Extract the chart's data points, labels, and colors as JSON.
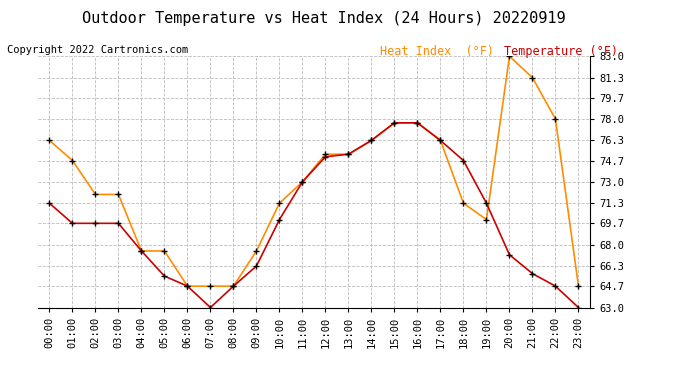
{
  "title": "Outdoor Temperature vs Heat Index (24 Hours) 20220919",
  "copyright": "Copyright 2022 Cartronics.com",
  "legend_heat_index": "Heat Index  (°F)",
  "legend_temperature": "Temperature (°F)",
  "hours": [
    "00:00",
    "01:00",
    "02:00",
    "03:00",
    "04:00",
    "05:00",
    "06:00",
    "07:00",
    "08:00",
    "09:00",
    "10:00",
    "11:00",
    "12:00",
    "13:00",
    "14:00",
    "15:00",
    "16:00",
    "17:00",
    "18:00",
    "19:00",
    "20:00",
    "21:00",
    "22:00",
    "23:00"
  ],
  "temperature": [
    71.3,
    69.7,
    69.7,
    69.7,
    67.5,
    65.5,
    64.7,
    63.0,
    64.7,
    66.3,
    70.0,
    73.0,
    75.0,
    75.2,
    76.3,
    77.7,
    77.7,
    76.3,
    74.7,
    71.3,
    67.2,
    65.7,
    64.7,
    63.0
  ],
  "heat_index": [
    76.3,
    74.7,
    72.0,
    72.0,
    67.5,
    67.5,
    64.7,
    64.7,
    64.7,
    67.5,
    71.3,
    73.0,
    75.2,
    75.2,
    76.3,
    77.7,
    77.7,
    76.3,
    71.3,
    70.0,
    83.0,
    81.3,
    78.0,
    64.7
  ],
  "temp_color": "#cc0000",
  "heat_index_color": "#ff8c00",
  "marker_color": "#000000",
  "background_color": "#ffffff",
  "grid_color": "#bbbbbb",
  "ylim_min": 63.0,
  "ylim_max": 83.0,
  "yticks": [
    63.0,
    64.7,
    66.3,
    68.0,
    69.7,
    71.3,
    73.0,
    74.7,
    76.3,
    78.0,
    79.7,
    81.3,
    83.0
  ],
  "title_fontsize": 11,
  "copyright_fontsize": 7.5,
  "legend_fontsize": 8.5,
  "tick_fontsize": 7.5
}
